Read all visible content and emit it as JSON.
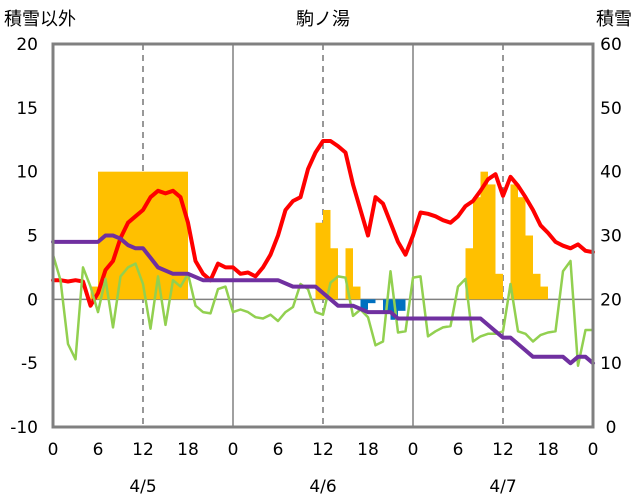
{
  "chart_data": {
    "type": "bar",
    "title": "駒ノ湯",
    "ylabel_left": "積雪以外",
    "ylabel_right": "積雪",
    "ylim_left": [
      -10,
      20
    ],
    "ylim_right": [
      0,
      60
    ],
    "yticks_left": [
      "-10",
      "-5",
      "0",
      "5",
      "10",
      "15",
      "20"
    ],
    "yticks_right": [
      "0",
      "10",
      "20",
      "30",
      "40",
      "50",
      "60"
    ],
    "xlim_hours": [
      0,
      72
    ],
    "xticks": [
      "0",
      "6",
      "12",
      "18",
      "0",
      "6",
      "12",
      "18",
      "0",
      "6",
      "12",
      "18",
      "0"
    ],
    "date_labels": [
      "4/5",
      "4/6",
      "4/7"
    ],
    "grid": true,
    "colors": {
      "temperature": "#ff0000",
      "snow_depth": "#7030a0",
      "humidity_line": "#92d050",
      "precip_positive": "#ffc000",
      "precip_negative": "#0070c0"
    },
    "series": [
      {
        "kind": "bars",
        "axis": "left",
        "color": "#ffc000",
        "x": [
          5.5,
          6.5,
          7.5,
          8.5,
          9.5,
          10.5,
          11.5,
          12.5,
          13.5,
          14.5,
          15.5,
          16.5,
          17.5,
          35.5,
          36.5,
          37.5,
          39.5,
          40.5,
          55.5,
          56.5,
          57.5,
          58.5,
          59.5,
          61.5,
          62.5,
          63.5,
          64.5,
          65.5
        ],
        "values": [
          1,
          10,
          10,
          10,
          10,
          10,
          10,
          10,
          10,
          10,
          10,
          10,
          10,
          6,
          7,
          4,
          4,
          1,
          4,
          8,
          10,
          9,
          2,
          9,
          8,
          5,
          2,
          1
        ]
      },
      {
        "kind": "bars",
        "axis": "left",
        "color": "#0070c0",
        "x": [
          41.5,
          42.5,
          44.5,
          45.5,
          46.5
        ],
        "values": [
          -0.8,
          -0.3,
          -1,
          -1.6,
          -0.9
        ]
      },
      {
        "kind": "line",
        "axis": "left",
        "color": "#ff0000",
        "width": 4,
        "x": [
          0,
          1,
          2,
          3,
          4,
          5,
          6,
          7,
          8,
          9,
          10,
          11,
          12,
          13,
          14,
          15,
          16,
          17,
          18,
          19,
          20,
          21,
          22,
          23,
          24,
          25,
          26,
          27,
          28,
          29,
          30,
          31,
          32,
          33,
          34,
          35,
          36,
          37,
          38,
          39,
          40,
          41,
          42,
          43,
          44,
          45,
          46,
          47,
          48,
          49,
          50,
          51,
          52,
          53,
          54,
          55,
          56,
          57,
          58,
          59,
          60,
          61,
          62,
          63,
          64,
          65,
          66,
          67,
          68,
          69,
          70,
          71,
          72
        ],
        "values": [
          1.5,
          1.5,
          1.4,
          1.5,
          1.4,
          -0.5,
          0.5,
          2.3,
          3,
          4.8,
          6,
          6.5,
          7,
          8,
          8.5,
          8.3,
          8.5,
          8,
          6,
          3,
          2,
          1.5,
          2.8,
          2.5,
          2.5,
          2,
          2.1,
          1.8,
          2.5,
          3.5,
          5,
          7,
          7.7,
          8,
          10.2,
          11.5,
          12.4,
          12.4,
          12,
          11.5,
          9,
          7,
          5,
          8,
          7.5,
          6,
          4.5,
          3.5,
          5,
          6.8,
          6.7,
          6.5,
          6.2,
          6,
          6.5,
          7.3,
          7.7,
          8.5,
          9.4,
          9.8,
          8.1,
          9.6,
          8.9,
          8,
          7,
          5.8,
          5.2,
          4.5,
          4.2,
          4,
          4.3,
          3.8,
          3.7
        ]
      },
      {
        "kind": "line",
        "axis": "left",
        "color": "#92d050",
        "width": 2.5,
        "x": [
          0,
          1,
          2,
          3,
          4,
          5,
          6,
          7,
          8,
          9,
          10,
          11,
          12,
          13,
          14,
          15,
          16,
          17,
          18,
          19,
          20,
          21,
          22,
          23,
          24,
          25,
          26,
          27,
          28,
          29,
          30,
          31,
          32,
          33,
          34,
          35,
          36,
          37,
          38,
          39,
          40,
          41,
          42,
          43,
          44,
          45,
          46,
          47,
          48,
          49,
          50,
          51,
          52,
          53,
          54,
          55,
          56,
          57,
          58,
          59,
          60,
          61,
          62,
          63,
          64,
          65,
          66,
          67,
          68,
          69,
          70,
          71,
          72
        ],
        "values": [
          3.5,
          1.5,
          -3.5,
          -4.7,
          2.5,
          1,
          -1,
          1.6,
          -2.2,
          1.8,
          2.5,
          2.8,
          1.2,
          -2.3,
          1.8,
          -2,
          1.5,
          1,
          2,
          -0.5,
          -1,
          -1.1,
          0.8,
          1,
          -1,
          -0.8,
          -1,
          -1.4,
          -1.5,
          -1.2,
          -1.7,
          -1,
          -0.6,
          1.2,
          0.8,
          -1,
          -1.2,
          1.3,
          1.8,
          1.7,
          -1.3,
          -0.8,
          -1.4,
          -3.6,
          -3.3,
          2.2,
          -2.6,
          -2.5,
          1.7,
          1.8,
          -2.9,
          -2.5,
          -2.2,
          -2.1,
          1,
          1.6,
          -3.3,
          -2.9,
          -2.7,
          -2.7,
          -2.5,
          1.2,
          -2.5,
          -2.7,
          -3.3,
          -2.8,
          -2.6,
          -2.5,
          2.2,
          3,
          -5.2,
          -2.4,
          -2.4
        ]
      },
      {
        "kind": "line",
        "axis": "right",
        "color": "#7030a0",
        "width": 4,
        "x": [
          0,
          4,
          6,
          7,
          8,
          9,
          10,
          11,
          12,
          13,
          14,
          16,
          18,
          20,
          22,
          24,
          26,
          28,
          30,
          32,
          34,
          35,
          36,
          37,
          38,
          40,
          42,
          44,
          45,
          46,
          48,
          50,
          52,
          54,
          56,
          57,
          58,
          59,
          60,
          61,
          62,
          63,
          64,
          66,
          68,
          69,
          70,
          71,
          72
        ],
        "values": [
          29,
          29,
          29,
          30,
          30,
          29.5,
          28.5,
          28,
          28,
          26.5,
          25,
          24,
          24,
          23,
          23,
          23,
          23,
          23,
          23,
          22,
          22,
          22,
          21,
          20,
          19,
          19,
          18,
          18,
          18,
          17,
          17,
          17,
          17,
          17,
          17,
          17,
          16,
          15,
          14,
          14,
          13,
          12,
          11,
          11,
          11,
          10,
          11,
          11,
          10
        ]
      }
    ]
  }
}
